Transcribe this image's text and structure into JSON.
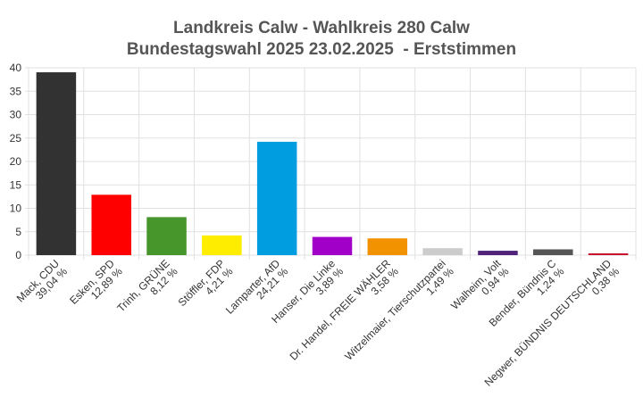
{
  "chart_data": {
    "type": "bar",
    "title": [
      "Landkreis Calw - Wahlkreis 280 Calw",
      "Bundestagswahl 2025 23.02.2025  - Erststimmen"
    ],
    "categories": [
      "Mack, CDU",
      "Esken, SPD",
      "Trinh, GRÜNE",
      "Stöffler, FDP",
      "Lamparter, AfD",
      "Hanser, Die Linke",
      "Dr. Handel, FREIE WÄHLER",
      "Witzelmaier, Tierschutzpartei",
      "Walheim, Volt",
      "Bender, Bündnis C",
      "Negwer, BÜNDNIS DEUTSCHLAND"
    ],
    "values": [
      39.04,
      12.89,
      8.12,
      4.21,
      24.21,
      3.89,
      3.58,
      1.49,
      0.94,
      1.24,
      0.38
    ],
    "value_labels": [
      "39,04 %",
      "12,89 %",
      "8,12 %",
      "4,21 %",
      "24,21 %",
      "3,89 %",
      "3,58 %",
      "1,49 %",
      "0,94 %",
      "1,24 %",
      "0,38 %"
    ],
    "colors": [
      "#323232",
      "#ff0000",
      "#46962b",
      "#ffed00",
      "#009ee0",
      "#a000c8",
      "#f39200",
      "#cccccc",
      "#502379",
      "#555555",
      "#c8102e"
    ],
    "ylim": [
      0,
      40
    ],
    "yticks": [
      0,
      5,
      10,
      15,
      20,
      25,
      30,
      35,
      40
    ],
    "grid": true
  }
}
